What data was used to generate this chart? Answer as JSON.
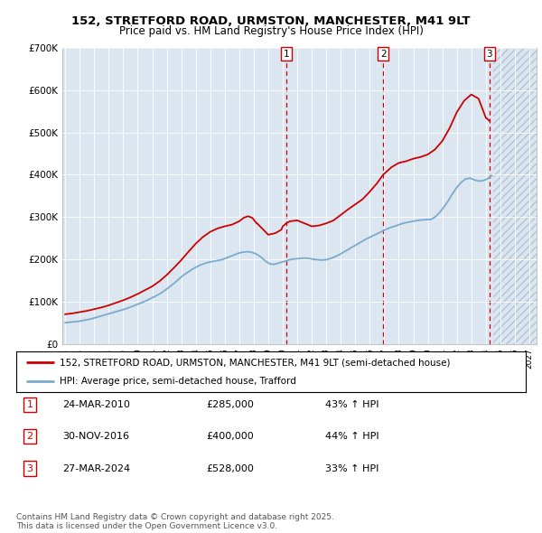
{
  "title": "152, STRETFORD ROAD, URMSTON, MANCHESTER, M41 9LT",
  "subtitle": "Price paid vs. HM Land Registry's House Price Index (HPI)",
  "background_color": "#ffffff",
  "plot_bg_color": "#dce6f1",
  "hatch_bg_color": "#c8d8e8",
  "ylabel": "",
  "ylim": [
    0,
    700000
  ],
  "yticks": [
    0,
    100000,
    200000,
    300000,
    400000,
    500000,
    600000,
    700000
  ],
  "ytick_labels": [
    "£0",
    "£100K",
    "£200K",
    "£300K",
    "£400K",
    "£500K",
    "£600K",
    "£700K"
  ],
  "xlim_start": 1994.8,
  "xlim_end": 2027.5,
  "xticks": [
    1995,
    1996,
    1997,
    1998,
    1999,
    2000,
    2001,
    2002,
    2003,
    2004,
    2005,
    2006,
    2007,
    2008,
    2009,
    2010,
    2011,
    2012,
    2013,
    2014,
    2015,
    2016,
    2017,
    2018,
    2019,
    2020,
    2021,
    2022,
    2023,
    2024,
    2025,
    2026,
    2027
  ],
  "vline_color": "#cc0000",
  "vline_style": "--",
  "vlines": [
    2010.23,
    2016.92,
    2024.24
  ],
  "vline_labels": [
    "1",
    "2",
    "3"
  ],
  "hatch_start": 2024.5,
  "legend_line1": "152, STRETFORD ROAD, URMSTON, MANCHESTER, M41 9LT (semi-detached house)",
  "legend_line2": "HPI: Average price, semi-detached house, Trafford",
  "price_color": "#cc0000",
  "hpi_color": "#7aaacc",
  "table_entries": [
    {
      "num": "1",
      "date": "24-MAR-2010",
      "price": "£285,000",
      "change": "43% ↑ HPI"
    },
    {
      "num": "2",
      "date": "30-NOV-2016",
      "price": "£400,000",
      "change": "44% ↑ HPI"
    },
    {
      "num": "3",
      "date": "27-MAR-2024",
      "price": "£528,000",
      "change": "33% ↑ HPI"
    }
  ],
  "footnote": "Contains HM Land Registry data © Crown copyright and database right 2025.\nThis data is licensed under the Open Government Licence v3.0.",
  "hpi_data": {
    "years": [
      1995.0,
      1995.3,
      1995.6,
      1995.9,
      1996.2,
      1996.5,
      1996.8,
      1997.1,
      1997.4,
      1997.7,
      1998.0,
      1998.3,
      1998.6,
      1998.9,
      1999.2,
      1999.5,
      1999.8,
      2000.1,
      2000.4,
      2000.7,
      2001.0,
      2001.3,
      2001.6,
      2001.9,
      2002.2,
      2002.5,
      2002.8,
      2003.1,
      2003.4,
      2003.7,
      2004.0,
      2004.3,
      2004.6,
      2004.9,
      2005.2,
      2005.5,
      2005.8,
      2006.1,
      2006.4,
      2006.7,
      2007.0,
      2007.3,
      2007.6,
      2007.9,
      2008.2,
      2008.5,
      2008.8,
      2009.1,
      2009.4,
      2009.7,
      2010.0,
      2010.3,
      2010.6,
      2010.9,
      2011.2,
      2011.5,
      2011.8,
      2012.1,
      2012.4,
      2012.7,
      2013.0,
      2013.3,
      2013.6,
      2013.9,
      2014.2,
      2014.5,
      2014.8,
      2015.1,
      2015.4,
      2015.7,
      2016.0,
      2016.3,
      2016.6,
      2016.9,
      2017.2,
      2017.5,
      2017.8,
      2018.1,
      2018.4,
      2018.7,
      2019.0,
      2019.3,
      2019.6,
      2019.9,
      2020.2,
      2020.5,
      2020.8,
      2021.1,
      2021.4,
      2021.7,
      2022.0,
      2022.3,
      2022.6,
      2022.9,
      2023.2,
      2023.5,
      2023.8,
      2024.1,
      2024.4
    ],
    "values": [
      50000,
      51000,
      52000,
      53000,
      55000,
      57000,
      59000,
      62000,
      65000,
      68000,
      71000,
      74000,
      77000,
      80000,
      83000,
      87000,
      91000,
      95000,
      99000,
      104000,
      109000,
      114000,
      120000,
      127000,
      135000,
      143000,
      152000,
      161000,
      168000,
      175000,
      181000,
      186000,
      190000,
      193000,
      195000,
      197000,
      199000,
      203000,
      207000,
      211000,
      215000,
      217000,
      218000,
      216000,
      212000,
      205000,
      196000,
      189000,
      188000,
      191000,
      194000,
      197000,
      200000,
      201000,
      202000,
      203000,
      202000,
      200000,
      199000,
      198000,
      199000,
      202000,
      206000,
      211000,
      217000,
      223000,
      229000,
      235000,
      241000,
      247000,
      252000,
      257000,
      262000,
      267000,
      272000,
      276000,
      279000,
      283000,
      286000,
      288000,
      290000,
      292000,
      293000,
      294000,
      294000,
      300000,
      310000,
      323000,
      338000,
      355000,
      370000,
      382000,
      390000,
      392000,
      388000,
      385000,
      386000,
      390000,
      398000
    ]
  },
  "price_data": {
    "years": [
      1995.0,
      1995.5,
      1996.0,
      1996.5,
      1997.0,
      1997.5,
      1998.0,
      1998.5,
      1999.0,
      1999.5,
      2000.0,
      2000.5,
      2001.0,
      2001.5,
      2002.0,
      2002.5,
      2003.0,
      2003.5,
      2004.0,
      2004.5,
      2005.0,
      2005.5,
      2006.0,
      2006.5,
      2007.0,
      2007.3,
      2007.6,
      2007.9,
      2008.2,
      2008.23,
      2009.0,
      2009.5,
      2009.9,
      2010.0,
      2010.23,
      2010.5,
      2011.0,
      2011.5,
      2012.0,
      2012.5,
      2013.0,
      2013.5,
      2014.0,
      2014.5,
      2015.0,
      2015.5,
      2016.0,
      2016.5,
      2016.92,
      2017.5,
      2018.0,
      2018.5,
      2019.0,
      2019.5,
      2020.0,
      2020.5,
      2021.0,
      2021.5,
      2022.0,
      2022.5,
      2023.0,
      2023.5,
      2024.0,
      2024.24
    ],
    "values": [
      70000,
      72000,
      75000,
      78000,
      82000,
      86000,
      91000,
      97000,
      103000,
      110000,
      118000,
      127000,
      136000,
      148000,
      163000,
      180000,
      198000,
      218000,
      237000,
      253000,
      265000,
      273000,
      278000,
      282000,
      290000,
      298000,
      302000,
      298000,
      285000,
      285000,
      258000,
      262000,
      270000,
      278000,
      285000,
      290000,
      292000,
      285000,
      278000,
      280000,
      285000,
      292000,
      305000,
      318000,
      330000,
      342000,
      360000,
      380000,
      400000,
      418000,
      428000,
      432000,
      438000,
      442000,
      448000,
      460000,
      480000,
      510000,
      548000,
      575000,
      590000,
      580000,
      535000,
      528000
    ]
  }
}
